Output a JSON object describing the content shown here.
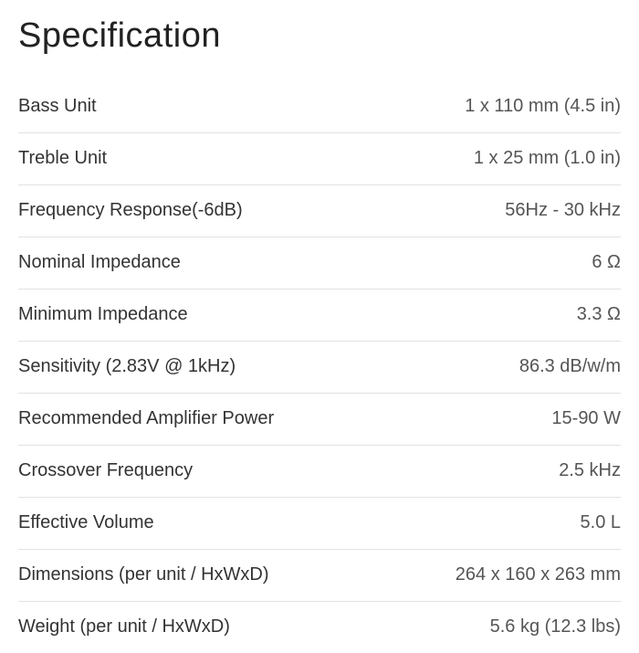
{
  "title": "Specification",
  "rows": [
    {
      "label": "Bass Unit",
      "value": "1 x 110 mm (4.5 in)"
    },
    {
      "label": "Treble Unit",
      "value": "1 x 25 mm (1.0 in)"
    },
    {
      "label": "Frequency Response(-6dB)",
      "value": "56Hz - 30 kHz"
    },
    {
      "label": "Nominal Impedance",
      "value": "6 Ω"
    },
    {
      "label": "Minimum Impedance",
      "value": "3.3 Ω"
    },
    {
      "label": "Sensitivity (2.83V @ 1kHz)",
      "value": "86.3 dB/w/m"
    },
    {
      "label": "Recommended Amplifier Power",
      "value": "15-90 W"
    },
    {
      "label": "Crossover Frequency",
      "value": "2.5 kHz"
    },
    {
      "label": "Effective Volume",
      "value": "5.0 L"
    },
    {
      "label": "Dimensions (per unit / HxWxD)",
      "value": "264 x 160 x 263 mm"
    },
    {
      "label": "Weight (per unit / HxWxD)",
      "value": "5.6 kg (12.3 lbs)"
    }
  ],
  "style": {
    "background_color": "#ffffff",
    "title_fontsize": 38,
    "row_fontsize": 20,
    "label_color": "#333333",
    "value_color": "#555555",
    "divider_color": "#e2e2e2"
  }
}
